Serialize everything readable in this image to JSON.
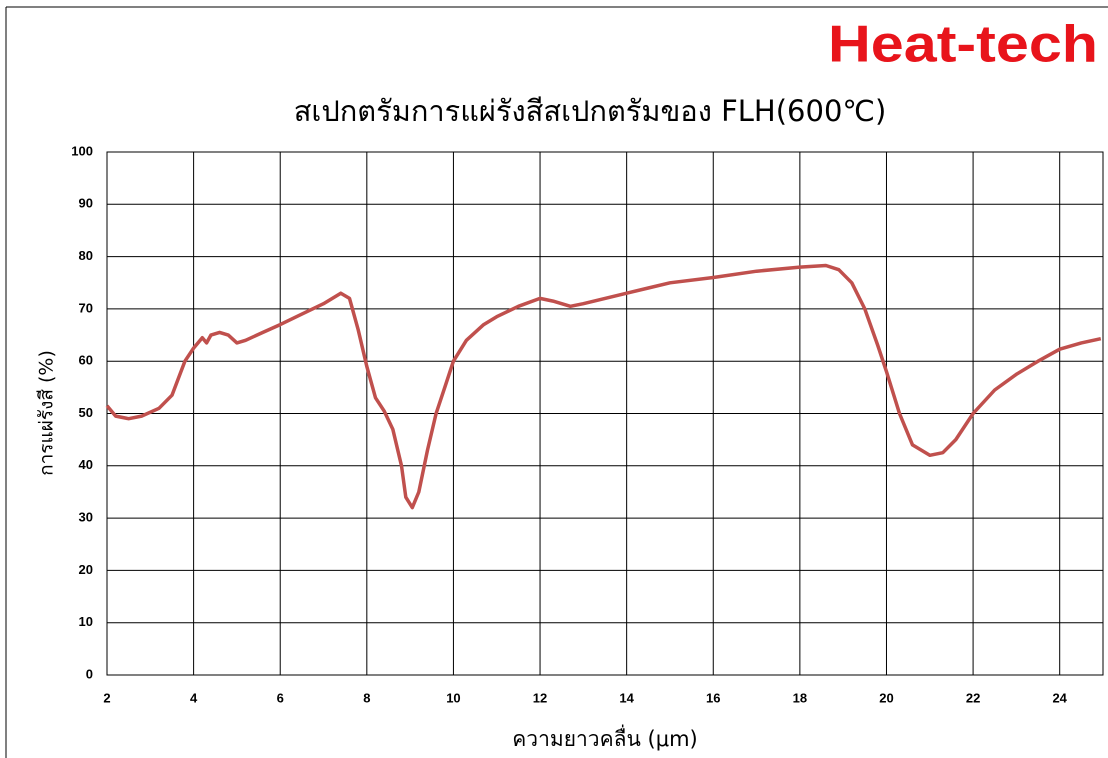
{
  "brand": "Heat-tech",
  "chart_data": {
    "type": "line",
    "title": "สเปกตรัมการแผ่รังสีสเปกตรัมของ FLH(600℃)",
    "x_label": "ความยาวคลื่น (μm)",
    "y_label": "การแผ่รังสี (%)",
    "xlim": [
      2,
      25
    ],
    "ylim": [
      0,
      100
    ],
    "xticks": [
      2,
      4,
      6,
      8,
      10,
      12,
      14,
      16,
      18,
      20,
      22,
      24
    ],
    "yticks": [
      0,
      10,
      20,
      30,
      40,
      50,
      60,
      70,
      80,
      90,
      100
    ],
    "grid": true,
    "series": [
      {
        "color": "#c0504d",
        "x": [
          2,
          2.2,
          2.5,
          2.8,
          3.2,
          3.5,
          3.8,
          4.0,
          4.2,
          4.3,
          4.4,
          4.6,
          4.8,
          5.0,
          5.2,
          5.6,
          6.0,
          6.5,
          7.0,
          7.4,
          7.6,
          7.8,
          8.0,
          8.2,
          8.4,
          8.6,
          8.8,
          8.9,
          9.05,
          9.2,
          9.4,
          9.6,
          9.8,
          10.0,
          10.3,
          10.7,
          11.0,
          11.5,
          12.0,
          12.3,
          12.7,
          13.0,
          13.5,
          14.0,
          14.5,
          15.0,
          16.0,
          17.0,
          18.0,
          18.6,
          18.9,
          19.2,
          19.5,
          19.8,
          20.0,
          20.3,
          20.6,
          21.0,
          21.3,
          21.6,
          22.0,
          22.5,
          23.0,
          23.5,
          24.0,
          24.5,
          24.95
        ],
        "values": [
          51.5,
          49.5,
          49,
          49.5,
          51,
          53.5,
          60,
          62.5,
          64.5,
          63.5,
          65,
          65.5,
          65,
          63.5,
          64,
          65.5,
          67,
          69,
          71,
          73,
          72,
          66,
          59,
          53,
          50.5,
          47,
          40,
          34,
          32,
          35,
          43,
          50,
          55,
          60,
          64,
          67,
          68.5,
          70.5,
          72,
          71.5,
          70.5,
          71,
          72,
          73,
          74,
          75,
          76,
          77.2,
          78,
          78.3,
          77.5,
          75,
          70,
          63,
          58,
          50,
          44,
          42,
          42.5,
          45,
          50,
          54.5,
          57.5,
          60,
          62.3,
          63.5,
          64.3
        ]
      }
    ]
  }
}
